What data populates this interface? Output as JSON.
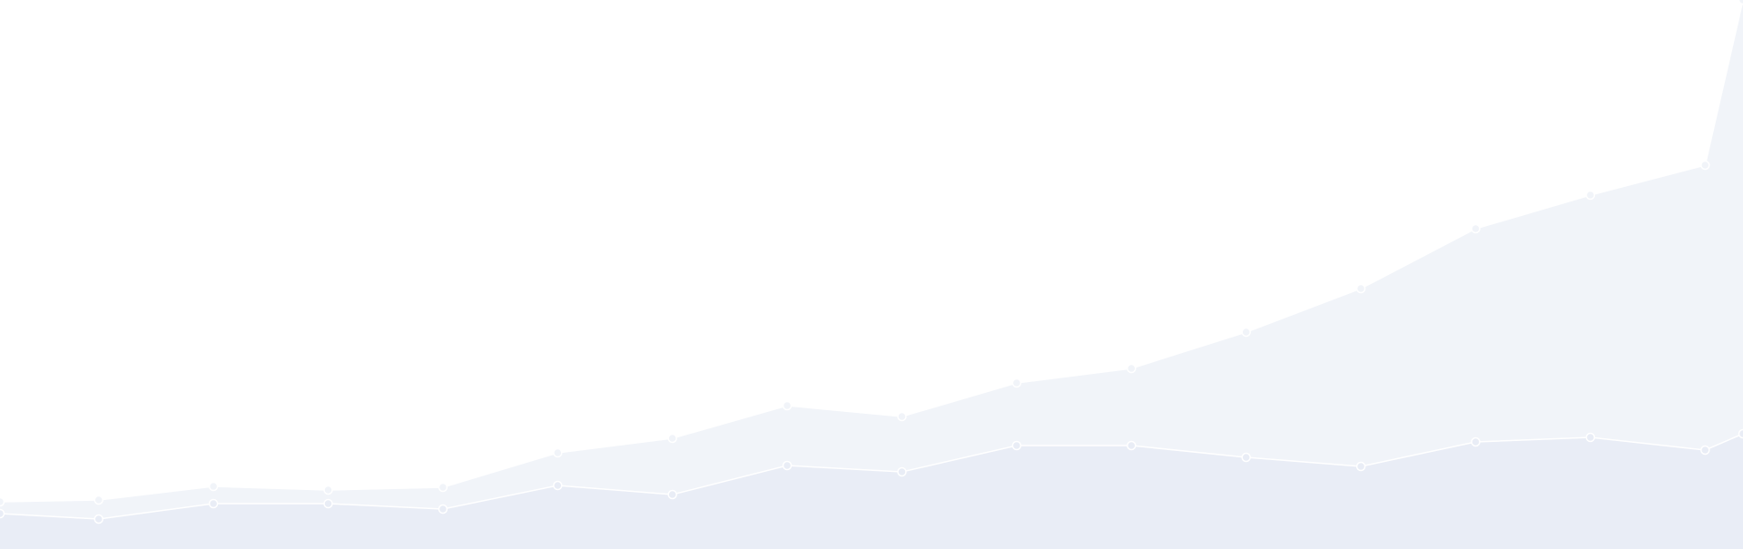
{
  "chart_data": {
    "type": "area",
    "x": [
      -0.86,
      0,
      1,
      2,
      3,
      4,
      5,
      6,
      7,
      8,
      9,
      10,
      11,
      12,
      13,
      14,
      14.33
    ],
    "xlim": [
      -0.86,
      14.33
    ],
    "ylim": [
      0,
      605
    ],
    "series": [
      {
        "color": "#f1f4f9",
        "values": [
          52,
          54,
          69,
          65,
          68,
          106,
          122,
          158,
          146,
          183,
          199,
          239,
          287,
          353,
          390,
          423,
          605
        ]
      },
      {
        "color": "#e9edf6",
        "values": [
          39,
          33,
          50,
          50,
          44,
          70,
          60,
          92,
          85,
          114,
          114,
          101,
          91,
          118,
          123,
          109,
          127
        ]
      }
    ]
  }
}
